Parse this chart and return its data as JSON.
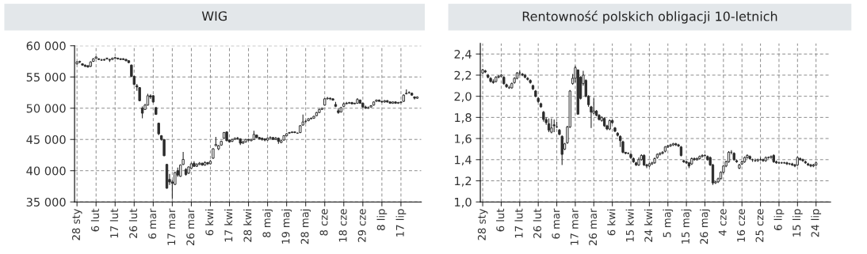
{
  "chart_data": [
    {
      "type": "candlestick",
      "title": "WIG",
      "color": "#2b2b2b",
      "grid": true,
      "ylim": [
        35000,
        60000
      ],
      "yticks": [
        {
          "value": 35000,
          "label": "35 000"
        },
        {
          "value": 40000,
          "label": "40 000"
        },
        {
          "value": 45000,
          "label": "45 000"
        },
        {
          "value": 50000,
          "label": "50 000"
        },
        {
          "value": 55000,
          "label": "55 000"
        },
        {
          "value": 60000,
          "label": "60 000"
        }
      ],
      "categories": [
        "28 sty",
        null,
        null,
        null,
        null,
        null,
        null,
        "6 lut",
        null,
        null,
        null,
        null,
        null,
        null,
        "17 lut",
        null,
        null,
        null,
        null,
        null,
        null,
        "26 lut",
        null,
        null,
        null,
        null,
        null,
        null,
        "6 mar",
        null,
        null,
        null,
        null,
        null,
        null,
        "17 mar",
        null,
        null,
        null,
        null,
        null,
        null,
        "26 mar",
        null,
        null,
        null,
        null,
        null,
        null,
        "6 kwi",
        null,
        null,
        null,
        null,
        null,
        null,
        "17 kwi",
        null,
        null,
        null,
        null,
        null,
        null,
        "28 kwi",
        null,
        null,
        null,
        null,
        null,
        null,
        "8 maj",
        null,
        null,
        null,
        null,
        null,
        null,
        "19 maj",
        null,
        null,
        null,
        null,
        null,
        null,
        "28 maj",
        null,
        null,
        null,
        null,
        null,
        null,
        "8 cze",
        null,
        null,
        null,
        null,
        null,
        null,
        "18 cze",
        null,
        null,
        null,
        null,
        null,
        null,
        "29 cze",
        null,
        null,
        null,
        null,
        null,
        null,
        "8 lip",
        null,
        null,
        null,
        null,
        null,
        null,
        "17 lip",
        null,
        null,
        null,
        null,
        null,
        null,
        null
      ],
      "ohlc": [
        [
          57100,
          57500,
          57000,
          57400
        ],
        [
          57400,
          57600,
          57200,
          57500
        ],
        [
          57100,
          57200,
          56800,
          56900
        ],
        [
          56900,
          57000,
          56600,
          56700
        ],
        [
          56800,
          56900,
          56500,
          56600
        ],
        [
          56700,
          57500,
          56600,
          57400
        ],
        [
          57500,
          58000,
          57400,
          57900
        ],
        [
          58000,
          58300,
          57900,
          58200
        ],
        [
          57900,
          58000,
          57700,
          57800
        ],
        [
          57700,
          57900,
          57600,
          57700
        ],
        [
          57800,
          57900,
          57600,
          57700
        ],
        [
          57900,
          58100,
          57800,
          58000
        ],
        [
          57800,
          57900,
          57400,
          57700
        ],
        [
          57800,
          58100,
          57700,
          58000
        ],
        [
          58000,
          58200,
          57900,
          58100
        ],
        [
          58000,
          58100,
          57800,
          57900
        ],
        [
          57900,
          58000,
          57700,
          57800
        ],
        [
          57900,
          58000,
          57700,
          57800
        ],
        [
          57800,
          57900,
          57500,
          57600
        ],
        [
          57600,
          57700,
          57200,
          57300
        ],
        [
          56900,
          57000,
          55000,
          55100
        ],
        [
          55100,
          55200,
          53700,
          53800
        ],
        [
          53600,
          53900,
          52800,
          53400
        ],
        [
          53300,
          53400,
          51100,
          51200
        ],
        [
          50000,
          50300,
          48400,
          49200
        ],
        [
          49800,
          50700,
          49700,
          50500
        ],
        [
          50500,
          52300,
          50400,
          52000
        ],
        [
          52000,
          52200,
          51500,
          51800
        ],
        [
          52000,
          52100,
          50900,
          51000
        ],
        [
          50100,
          50200,
          49000,
          49000
        ],
        [
          47600,
          47700,
          45700,
          45900
        ],
        [
          45600,
          45700,
          44800,
          45000
        ],
        [
          45000,
          45000,
          42300,
          42400
        ],
        [
          41000,
          41100,
          37100,
          37200
        ],
        [
          38600,
          39500,
          37700,
          38200
        ],
        [
          38200,
          38500,
          35500,
          38000
        ],
        [
          37800,
          39800,
          37700,
          39700
        ],
        [
          40000,
          40500,
          39000,
          39300
        ],
        [
          39100,
          41000,
          39000,
          40900
        ],
        [
          41000,
          43000,
          40900,
          41800
        ],
        [
          40200,
          40400,
          39200,
          39400
        ],
        [
          39600,
          40700,
          39500,
          40600
        ],
        [
          40400,
          41300,
          40300,
          41100
        ],
        [
          41200,
          41500,
          40600,
          40700
        ],
        [
          40700,
          41200,
          40600,
          41000
        ],
        [
          41000,
          41400,
          40900,
          41200
        ],
        [
          41200,
          41300,
          40800,
          40900
        ],
        [
          40900,
          41500,
          40800,
          41300
        ],
        [
          41300,
          41400,
          40900,
          41100
        ],
        [
          41100,
          41700,
          41000,
          41500
        ],
        [
          42000,
          43600,
          41900,
          43500
        ],
        [
          44000,
          45400,
          43900,
          44200
        ],
        [
          43500,
          44100,
          43300,
          44000
        ],
        [
          44100,
          44800,
          44000,
          44700
        ],
        [
          45200,
          46200,
          45100,
          46100
        ],
        [
          46200,
          46300,
          44700,
          44800
        ],
        [
          44900,
          45000,
          44500,
          44600
        ],
        [
          44700,
          45100,
          44600,
          45000
        ],
        [
          45000,
          45300,
          44900,
          45200
        ],
        [
          45200,
          45400,
          45000,
          45100
        ],
        [
          45100,
          45200,
          44100,
          44400
        ],
        [
          44400,
          44800,
          44300,
          44600
        ],
        [
          44600,
          45100,
          44500,
          45000
        ],
        [
          45000,
          45100,
          44700,
          44900
        ],
        [
          44800,
          45100,
          44700,
          45000
        ],
        [
          45000,
          46400,
          44900,
          45800
        ],
        [
          45700,
          45800,
          45200,
          45300
        ],
        [
          45300,
          45400,
          45000,
          45100
        ],
        [
          45200,
          45300,
          44800,
          45000
        ],
        [
          45100,
          45200,
          44700,
          44900
        ],
        [
          44900,
          45300,
          44800,
          45200
        ],
        [
          45200,
          45500,
          45100,
          45300
        ],
        [
          45300,
          45400,
          44900,
          45000
        ],
        [
          45000,
          45400,
          44900,
          45200
        ],
        [
          45200,
          45300,
          44300,
          44700
        ],
        [
          44500,
          44900,
          44400,
          44800
        ],
        [
          44900,
          45700,
          44800,
          45600
        ],
        [
          45600,
          46000,
          45500,
          45900
        ],
        [
          46000,
          46200,
          45900,
          46100
        ],
        [
          46100,
          46300,
          46000,
          46200
        ],
        [
          46200,
          46300,
          46000,
          46100
        ],
        [
          46000,
          46100,
          45900,
          46000
        ],
        [
          46100,
          47300,
          46000,
          47200
        ],
        [
          47300,
          49000,
          47200,
          47800
        ],
        [
          47900,
          48100,
          47600,
          47900
        ],
        [
          48000,
          48400,
          47900,
          48300
        ],
        [
          48300,
          48500,
          48200,
          48400
        ],
        [
          48400,
          48800,
          48300,
          48700
        ],
        [
          48800,
          49400,
          48700,
          49300
        ],
        [
          49300,
          49900,
          49200,
          49800
        ],
        [
          49800,
          50100,
          49700,
          50000
        ],
        [
          50500,
          51600,
          50400,
          51500
        ],
        [
          51500,
          51800,
          51400,
          51600
        ],
        [
          51600,
          51700,
          51300,
          51500
        ],
        [
          51500,
          51600,
          51200,
          51300
        ],
        [
          50600,
          51000,
          50200,
          50300
        ],
        [
          49600,
          50000,
          49100,
          49300
        ],
        [
          49400,
          50200,
          49300,
          50100
        ],
        [
          50300,
          50900,
          50200,
          50700
        ],
        [
          50700,
          51000,
          50600,
          50800
        ],
        [
          50800,
          51000,
          50700,
          50900
        ],
        [
          50900,
          51000,
          50600,
          50700
        ],
        [
          50700,
          50900,
          50600,
          50800
        ],
        [
          50800,
          51600,
          50700,
          51400
        ],
        [
          51300,
          51400,
          50700,
          50800
        ],
        [
          50800,
          50900,
          50100,
          50200
        ],
        [
          50200,
          50400,
          49900,
          50000
        ],
        [
          50000,
          50300,
          49900,
          50100
        ],
        [
          50200,
          50500,
          50100,
          50400
        ],
        [
          50500,
          51100,
          50400,
          51000
        ],
        [
          51100,
          51400,
          51000,
          51300
        ],
        [
          51300,
          51400,
          51000,
          51100
        ],
        [
          51100,
          51200,
          50900,
          51000
        ],
        [
          51000,
          51300,
          50900,
          51200
        ],
        [
          51200,
          51300,
          50900,
          51000
        ],
        [
          51000,
          51100,
          50700,
          50800
        ],
        [
          50800,
          51100,
          50700,
          51000
        ],
        [
          51000,
          51100,
          50700,
          50800
        ],
        [
          50800,
          51000,
          50700,
          50900
        ],
        [
          50900,
          51100,
          50800,
          51000
        ],
        [
          51100,
          52200,
          51000,
          52100
        ],
        [
          52300,
          53000,
          52200,
          52400
        ],
        [
          52500,
          52700,
          52300,
          52500
        ],
        [
          52400,
          52500,
          52000,
          52100
        ],
        [
          51800,
          51900,
          51400,
          51600
        ],
        [
          51600,
          51900,
          51500,
          51800
        ],
        null
      ]
    },
    {
      "type": "candlestick",
      "title": "Rentowność polskich obligacji 10-letnich",
      "color": "#2b2b2b",
      "grid": true,
      "ylim": [
        1.0,
        2.5
      ],
      "yticks": [
        {
          "value": 1.0,
          "label": "1,0"
        },
        {
          "value": 1.2,
          "label": "1,2"
        },
        {
          "value": 1.4,
          "label": "1,4"
        },
        {
          "value": 1.6,
          "label": "1,6"
        },
        {
          "value": 1.8,
          "label": "1,8"
        },
        {
          "value": 2.0,
          "label": "2,0"
        },
        {
          "value": 2.2,
          "label": "2,2"
        },
        {
          "value": 2.4,
          "label": "2,4"
        }
      ],
      "categories": [
        "28 sty",
        null,
        null,
        null,
        null,
        null,
        null,
        "6 lut",
        null,
        null,
        null,
        null,
        null,
        null,
        "17 lut",
        null,
        null,
        null,
        null,
        null,
        null,
        "26 lut",
        null,
        null,
        null,
        null,
        null,
        null,
        "6 mar",
        null,
        null,
        null,
        null,
        null,
        null,
        "17 mar",
        null,
        null,
        null,
        null,
        null,
        null,
        "26 mar",
        null,
        null,
        null,
        null,
        null,
        null,
        "6 kwi",
        null,
        null,
        null,
        null,
        null,
        null,
        "15 kwi",
        null,
        null,
        null,
        null,
        null,
        null,
        "24 kwi",
        null,
        null,
        null,
        null,
        null,
        null,
        "5 maj",
        null,
        null,
        null,
        null,
        null,
        null,
        "15 maj",
        null,
        null,
        null,
        null,
        null,
        null,
        "26 maj",
        null,
        null,
        null,
        null,
        null,
        null,
        "4 cze",
        null,
        null,
        null,
        null,
        null,
        null,
        "16 cze",
        null,
        null,
        null,
        null,
        null,
        null,
        "25 cze",
        null,
        null,
        null,
        null,
        null,
        null,
        "6 lip",
        null,
        null,
        null,
        null,
        null,
        null,
        "15 lip",
        null,
        null,
        null,
        null,
        null,
        null,
        "24 lip",
        null,
        null,
        null,
        null,
        null
      ],
      "ohlc": [
        [
          2.22,
          2.26,
          2.21,
          2.25
        ],
        [
          2.24,
          2.25,
          2.22,
          2.23
        ],
        [
          2.2,
          2.21,
          2.17,
          2.18
        ],
        [
          2.17,
          2.18,
          2.13,
          2.14
        ],
        [
          2.14,
          2.16,
          2.12,
          2.13
        ],
        [
          2.14,
          2.19,
          2.13,
          2.18
        ],
        [
          2.18,
          2.2,
          2.17,
          2.19
        ],
        [
          2.19,
          2.21,
          2.18,
          2.2
        ],
        [
          2.18,
          2.19,
          2.11,
          2.12
        ],
        [
          2.11,
          2.12,
          2.08,
          2.09
        ],
        [
          2.08,
          2.1,
          2.07,
          2.08
        ],
        [
          2.08,
          2.13,
          2.07,
          2.12
        ],
        [
          2.13,
          2.18,
          2.12,
          2.17
        ],
        [
          2.17,
          2.23,
          2.16,
          2.22
        ],
        [
          2.22,
          2.24,
          2.2,
          2.22
        ],
        [
          2.21,
          2.22,
          2.19,
          2.2
        ],
        [
          2.2,
          2.21,
          2.17,
          2.18
        ],
        [
          2.17,
          2.18,
          2.15,
          2.16
        ],
        [
          2.15,
          2.16,
          2.12,
          2.13
        ],
        [
          2.1,
          2.11,
          2.06,
          2.07
        ],
        [
          2.05,
          2.06,
          1.99,
          2.0
        ],
        [
          1.98,
          1.99,
          1.94,
          1.95
        ],
        [
          1.93,
          1.94,
          1.89,
          1.9
        ],
        [
          1.85,
          1.86,
          1.76,
          1.78
        ],
        [
          1.78,
          1.8,
          1.73,
          1.75
        ],
        [
          1.74,
          1.79,
          1.66,
          1.68
        ],
        [
          1.66,
          1.79,
          1.65,
          1.7
        ],
        [
          1.73,
          1.78,
          1.66,
          1.72
        ],
        [
          1.71,
          1.76,
          1.7,
          1.71
        ],
        [
          1.68,
          1.69,
          1.63,
          1.64
        ],
        [
          1.62,
          1.63,
          1.35,
          1.45
        ],
        [
          1.5,
          1.56,
          1.49,
          1.55
        ],
        [
          1.56,
          1.72,
          1.55,
          1.71
        ],
        [
          1.71,
          2.06,
          1.7,
          2.05
        ],
        [
          2.12,
          2.21,
          2.11,
          2.17
        ],
        [
          2.17,
          2.29,
          2.13,
          2.27
        ],
        [
          2.25,
          2.25,
          1.83,
          1.83
        ],
        [
          2.18,
          2.19,
          1.97,
          1.98
        ],
        [
          2.12,
          2.24,
          2.1,
          2.2
        ],
        [
          2.15,
          2.16,
          1.99,
          2.0
        ],
        [
          2.0,
          2.01,
          1.9,
          1.92
        ],
        [
          1.9,
          1.91,
          1.7,
          1.85
        ],
        [
          1.84,
          1.98,
          1.83,
          1.86
        ],
        [
          1.86,
          1.87,
          1.81,
          1.82
        ],
        [
          1.82,
          1.83,
          1.77,
          1.78
        ],
        [
          1.77,
          1.81,
          1.76,
          1.8
        ],
        [
          1.79,
          1.8,
          1.71,
          1.72
        ],
        [
          1.72,
          1.73,
          1.68,
          1.69
        ],
        [
          1.69,
          1.78,
          1.68,
          1.77
        ],
        [
          1.77,
          1.78,
          1.74,
          1.75
        ],
        [
          1.7,
          1.71,
          1.66,
          1.67
        ],
        [
          1.65,
          1.66,
          1.62,
          1.63
        ],
        [
          1.62,
          1.63,
          1.52,
          1.58
        ],
        [
          1.57,
          1.58,
          1.46,
          1.47
        ],
        [
          1.47,
          1.47,
          1.45,
          1.46
        ],
        [
          1.46,
          1.47,
          1.45,
          1.46
        ],
        [
          1.45,
          1.46,
          1.41,
          1.42
        ],
        [
          1.41,
          1.42,
          1.37,
          1.38
        ],
        [
          1.37,
          1.38,
          1.34,
          1.35
        ],
        [
          1.35,
          1.42,
          1.34,
          1.4
        ],
        [
          1.4,
          1.45,
          1.39,
          1.44
        ],
        [
          1.44,
          1.45,
          1.34,
          1.35
        ],
        [
          1.35,
          1.36,
          1.32,
          1.34
        ],
        [
          1.34,
          1.37,
          1.33,
          1.36
        ],
        [
          1.36,
          1.38,
          1.35,
          1.37
        ],
        [
          1.37,
          1.42,
          1.36,
          1.41
        ],
        [
          1.42,
          1.46,
          1.41,
          1.45
        ],
        [
          1.45,
          1.47,
          1.44,
          1.46
        ],
        [
          1.46,
          1.48,
          1.45,
          1.47
        ],
        [
          1.48,
          1.53,
          1.47,
          1.52
        ],
        [
          1.52,
          1.54,
          1.51,
          1.53
        ],
        [
          1.53,
          1.55,
          1.52,
          1.54
        ],
        [
          1.54,
          1.56,
          1.53,
          1.55
        ],
        [
          1.55,
          1.56,
          1.53,
          1.54
        ],
        [
          1.54,
          1.55,
          1.52,
          1.53
        ],
        [
          1.52,
          1.53,
          1.43,
          1.44
        ],
        [
          1.39,
          1.4,
          1.37,
          1.38
        ],
        [
          1.38,
          1.39,
          1.36,
          1.37
        ],
        [
          1.37,
          1.38,
          1.32,
          1.34
        ],
        [
          1.36,
          1.42,
          1.35,
          1.41
        ],
        [
          1.41,
          1.42,
          1.39,
          1.4
        ],
        [
          1.4,
          1.42,
          1.39,
          1.41
        ],
        [
          1.41,
          1.44,
          1.4,
          1.43
        ],
        [
          1.43,
          1.45,
          1.42,
          1.44
        ],
        [
          1.44,
          1.45,
          1.43,
          1.44
        ],
        [
          1.43,
          1.44,
          1.39,
          1.4
        ],
        [
          1.42,
          1.43,
          1.34,
          1.35
        ],
        [
          1.35,
          1.36,
          1.16,
          1.18
        ],
        [
          1.18,
          1.2,
          1.17,
          1.19
        ],
        [
          1.19,
          1.23,
          1.18,
          1.22
        ],
        [
          1.22,
          1.29,
          1.21,
          1.28
        ],
        [
          1.28,
          1.35,
          1.27,
          1.34
        ],
        [
          1.34,
          1.39,
          1.33,
          1.38
        ],
        [
          1.38,
          1.48,
          1.37,
          1.47
        ],
        [
          1.47,
          1.49,
          1.45,
          1.47
        ],
        [
          1.46,
          1.47,
          1.39,
          1.4
        ],
        [
          1.39,
          1.4,
          1.37,
          1.38
        ],
        [
          1.32,
          1.36,
          1.31,
          1.35
        ],
        [
          1.36,
          1.39,
          1.35,
          1.38
        ],
        [
          1.38,
          1.43,
          1.37,
          1.42
        ],
        [
          1.42,
          1.45,
          1.41,
          1.44
        ],
        [
          1.43,
          1.44,
          1.4,
          1.41
        ],
        [
          1.4,
          1.41,
          1.38,
          1.4
        ],
        [
          1.39,
          1.41,
          1.38,
          1.39
        ],
        [
          1.39,
          1.41,
          1.38,
          1.4
        ],
        [
          1.4,
          1.42,
          1.39,
          1.4
        ],
        [
          1.4,
          1.41,
          1.38,
          1.39
        ],
        [
          1.39,
          1.43,
          1.38,
          1.42
        ],
        [
          1.42,
          1.43,
          1.41,
          1.42
        ],
        [
          1.42,
          1.44,
          1.41,
          1.43
        ],
        [
          1.44,
          1.45,
          1.37,
          1.38
        ],
        [
          1.38,
          1.39,
          1.36,
          1.37
        ],
        [
          1.37,
          1.38,
          1.36,
          1.37
        ],
        [
          1.37,
          1.38,
          1.36,
          1.37
        ],
        [
          1.37,
          1.38,
          1.36,
          1.37
        ],
        [
          1.37,
          1.38,
          1.35,
          1.36
        ],
        [
          1.36,
          1.37,
          1.35,
          1.36
        ],
        [
          1.36,
          1.37,
          1.34,
          1.35
        ],
        [
          1.35,
          1.36,
          1.33,
          1.34
        ],
        [
          1.35,
          1.43,
          1.34,
          1.42
        ],
        [
          1.41,
          1.42,
          1.39,
          1.4
        ],
        [
          1.4,
          1.41,
          1.38,
          1.39
        ],
        [
          1.38,
          1.39,
          1.36,
          1.37
        ],
        [
          1.36,
          1.37,
          1.34,
          1.35
        ],
        [
          1.35,
          1.36,
          1.33,
          1.34
        ],
        [
          1.34,
          1.36,
          1.33,
          1.35
        ],
        [
          1.35,
          1.38,
          1.34,
          1.37
        ],
        null,
        null,
        null,
        null,
        null
      ]
    }
  ]
}
